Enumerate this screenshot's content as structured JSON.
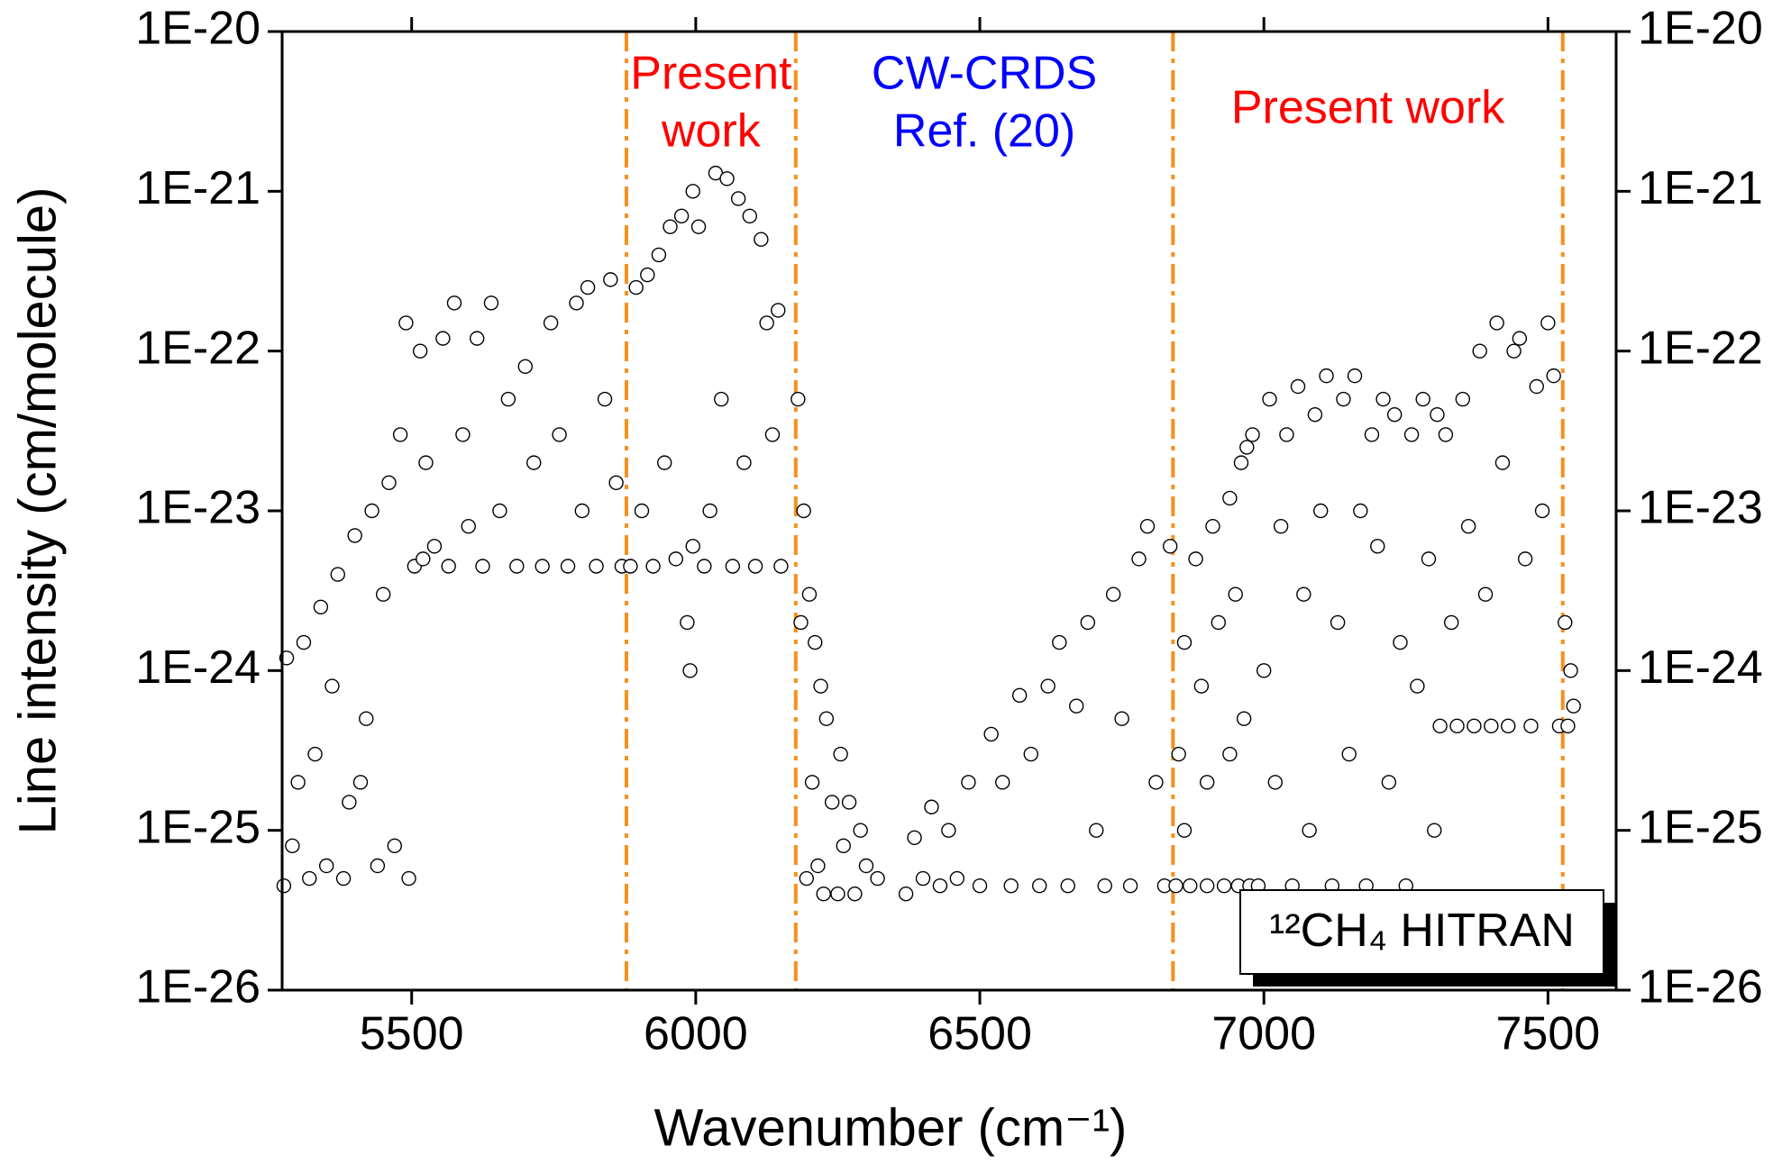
{
  "chart_data": {
    "type": "scatter",
    "xlabel": "Wavenumber (cm⁻¹)",
    "ylabel": "Line intensity (cm/molecule)",
    "xlim": [
      5272,
      7620
    ],
    "xticks": [
      5500,
      6000,
      6500,
      7000,
      7500
    ],
    "ylim": [
      1e-26,
      1e-20
    ],
    "ylog": true,
    "yticks": [
      {
        "value": 1e-26,
        "label": "1E-26"
      },
      {
        "value": 1e-25,
        "label": "1E-25"
      },
      {
        "value": 1e-24,
        "label": "1E-24"
      },
      {
        "value": 1e-23,
        "label": "1E-23"
      },
      {
        "value": 1e-22,
        "label": "1E-22"
      },
      {
        "value": 1e-21,
        "label": "1E-21"
      },
      {
        "value": 1e-20,
        "label": "1E-20"
      }
    ],
    "legend": "lower right",
    "vlines": [
      {
        "x": 5878,
        "color": "#f7901e"
      },
      {
        "x": 6176,
        "color": "#f7901e"
      },
      {
        "x": 6840,
        "color": "#f7901e"
      },
      {
        "x": 7526,
        "color": "#f7901e"
      }
    ],
    "annotations": [
      {
        "text": [
          "Present",
          "work"
        ],
        "color": "#ff0000"
      },
      {
        "text": [
          "CW-CRDS",
          "Ref. (20)"
        ],
        "color": "#0000ff"
      },
      {
        "text": [
          "Present work"
        ],
        "color": "#ff0000"
      }
    ],
    "series": [
      {
        "name": "¹²CH₄  HITRAN",
        "color": "#000000",
        "x": [
          5275,
          5280,
          5290,
          5300,
          5310,
          5320,
          5330,
          5340,
          5350,
          5360,
          5370,
          5380,
          5390,
          5400,
          5410,
          5420,
          5430,
          5440,
          5450,
          5460,
          5470,
          5480,
          5490,
          5495,
          5505,
          5515,
          5525,
          5540,
          5555,
          5565,
          5575,
          5590,
          5600,
          5615,
          5625,
          5640,
          5655,
          5670,
          5685,
          5700,
          5715,
          5730,
          5745,
          5760,
          5775,
          5790,
          5800,
          5810,
          5825,
          5840,
          5850,
          5860,
          5870,
          5520,
          5885,
          5895,
          5905,
          5915,
          5925,
          5935,
          5945,
          5955,
          5965,
          5975,
          5985,
          5990,
          5995,
          6005,
          6015,
          6025,
          6035,
          6045,
          6055,
          6065,
          6075,
          6085,
          6095,
          6105,
          6115,
          6125,
          6135,
          6145,
          6150,
          5995,
          6180,
          6185,
          6190,
          6195,
          6200,
          6205,
          6210,
          6215,
          6220,
          6225,
          6230,
          6240,
          6250,
          6255,
          6260,
          6270,
          6280,
          6290,
          6300,
          6320,
          6370,
          6385,
          6400,
          6415,
          6430,
          6445,
          6460,
          6480,
          6500,
          6520,
          6540,
          6555,
          6570,
          6590,
          6605,
          6620,
          6640,
          6655,
          6670,
          6690,
          6705,
          6720,
          6735,
          6750,
          6765,
          6780,
          6795,
          6810,
          6825,
          6835,
          6845,
          6850,
          6860,
          6870,
          6880,
          6890,
          6900,
          6910,
          6920,
          6930,
          6940,
          6950,
          6955,
          6960,
          6965,
          6970,
          6975,
          6860,
          6900,
          6940,
          6980,
          6990,
          7000,
          7010,
          7020,
          7030,
          7040,
          7050,
          7060,
          7070,
          7080,
          7090,
          7100,
          7110,
          7120,
          7130,
          7140,
          7150,
          7160,
          7170,
          7180,
          7190,
          7200,
          7210,
          7220,
          7230,
          7240,
          7250,
          7260,
          7270,
          7280,
          7290,
          7300,
          7305,
          7310,
          7320,
          7330,
          7340,
          7350,
          7360,
          7370,
          7380,
          7390,
          7400,
          7410,
          7420,
          7430,
          7440,
          7450,
          7460,
          7470,
          7480,
          7490,
          7500,
          7510,
          7520,
          7530,
          7535,
          7540,
          7545
        ],
        "values": [
          4.5e-26,
          1.2e-24,
          8e-26,
          2e-25,
          1.5e-24,
          5e-26,
          3e-25,
          2.5e-24,
          6e-26,
          8e-25,
          4e-24,
          5e-26,
          1.5e-25,
          7e-24,
          2e-25,
          5e-25,
          1e-23,
          6e-26,
          3e-24,
          1.5e-23,
          8e-26,
          3e-23,
          1.5e-22,
          5e-26,
          4.5e-24,
          1e-22,
          2e-23,
          6e-24,
          1.2e-22,
          4.5e-24,
          2e-22,
          3e-23,
          8e-24,
          1.2e-22,
          4.5e-24,
          2e-22,
          1e-23,
          5e-23,
          4.5e-24,
          8e-23,
          2e-23,
          4.5e-24,
          1.5e-22,
          3e-23,
          4.5e-24,
          2e-22,
          1e-23,
          2.5e-22,
          4.5e-24,
          5e-23,
          2.8e-22,
          1.5e-23,
          4.5e-24,
          5e-24,
          4.5e-24,
          2.5e-22,
          1e-23,
          3e-22,
          4.5e-24,
          4e-22,
          2e-23,
          6e-22,
          5e-24,
          7e-22,
          2e-24,
          1e-24,
          1e-21,
          6e-22,
          4.5e-24,
          1e-23,
          1.3e-21,
          5e-23,
          1.2e-21,
          4.5e-24,
          9e-22,
          2e-23,
          7e-22,
          4.5e-24,
          5e-22,
          1.5e-22,
          3e-23,
          1.8e-22,
          4.5e-24,
          6e-24,
          5e-23,
          2e-24,
          1e-23,
          5e-26,
          3e-24,
          2e-25,
          1.5e-24,
          6e-26,
          8e-25,
          4e-26,
          5e-25,
          1.5e-25,
          4e-26,
          3e-25,
          8e-26,
          1.5e-25,
          4e-26,
          1e-25,
          6e-26,
          5e-26,
          4e-26,
          9e-26,
          5e-26,
          1.4e-25,
          4.5e-26,
          1e-25,
          5e-26,
          2e-25,
          4.5e-26,
          4e-25,
          2e-25,
          4.5e-26,
          7e-25,
          3e-25,
          4.5e-26,
          8e-25,
          1.5e-24,
          4.5e-26,
          6e-25,
          2e-24,
          1e-25,
          4.5e-26,
          3e-24,
          5e-25,
          4.5e-26,
          5e-24,
          8e-24,
          2e-25,
          4.5e-26,
          6e-24,
          4.5e-26,
          3e-25,
          1.5e-24,
          4.5e-26,
          5e-24,
          8e-25,
          4.5e-26,
          8e-24,
          2e-24,
          4.5e-26,
          1.2e-23,
          3e-24,
          4.5e-26,
          2e-23,
          5e-25,
          2.5e-23,
          4.5e-26,
          1e-25,
          2e-25,
          3e-25,
          3e-23,
          4.5e-26,
          1e-24,
          5e-23,
          2e-25,
          8e-24,
          3e-23,
          4.5e-26,
          6e-23,
          3e-24,
          1e-25,
          4e-23,
          1e-23,
          7e-23,
          4.5e-26,
          2e-24,
          5e-23,
          3e-25,
          7e-23,
          1e-23,
          4.5e-26,
          3e-23,
          6e-24,
          5e-23,
          2e-25,
          4e-23,
          1.5e-24,
          4.5e-26,
          3e-23,
          8e-25,
          5e-23,
          5e-24,
          1e-25,
          4e-23,
          4.5e-25,
          3e-23,
          2e-24,
          4.5e-25,
          5e-23,
          8e-24,
          4.5e-25,
          1e-22,
          3e-24,
          4.5e-25,
          1.5e-22,
          2e-23,
          4.5e-25,
          1e-22,
          1.2e-22,
          5e-24,
          4.5e-25,
          6e-23,
          1e-23,
          1.5e-22,
          7e-23,
          4.5e-25,
          2e-24,
          4.5e-25,
          1e-24,
          6e-25
        ]
      }
    ]
  }
}
